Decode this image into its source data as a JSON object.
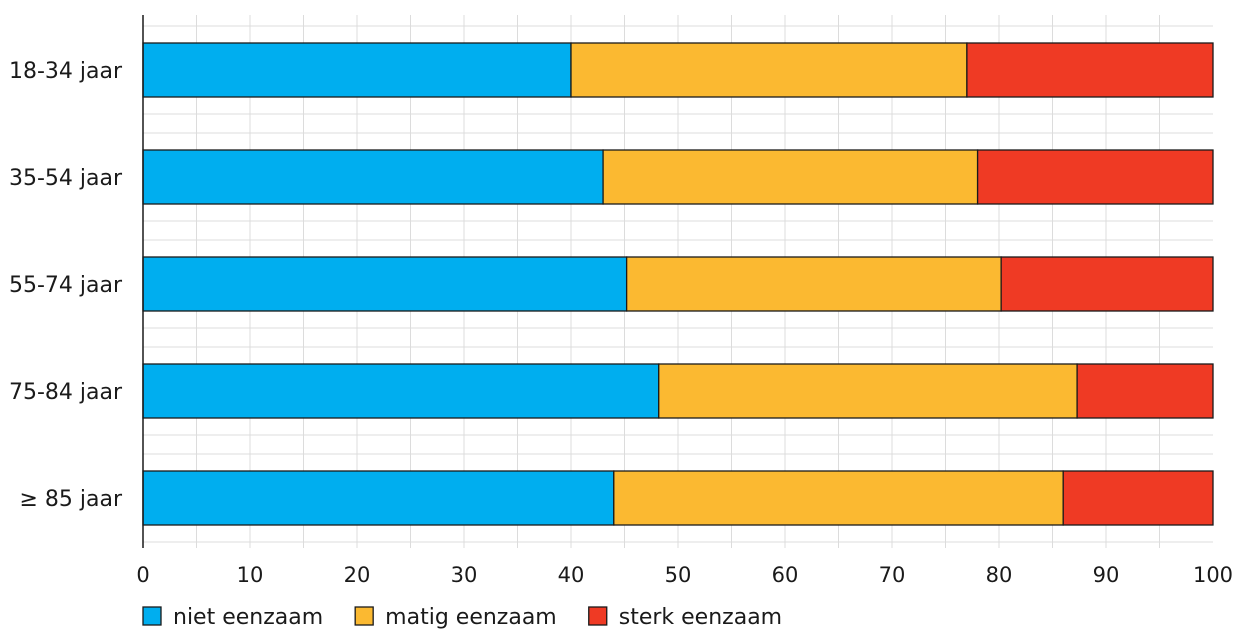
{
  "chart_data": {
    "type": "bar",
    "orientation": "horizontal",
    "stacked": true,
    "categories": [
      "18-34 jaar",
      "35-54 jaar",
      "55-74 jaar",
      "75-84 jaar",
      "≥ 85 jaar"
    ],
    "series": [
      {
        "name": "niet eenzaam",
        "color": "#00aeef",
        "values": [
          40,
          43,
          45.2,
          48.2,
          44
        ]
      },
      {
        "name": "matig eenzaam",
        "color": "#fbb931",
        "values": [
          37,
          35,
          35,
          39.1,
          42
        ]
      },
      {
        "name": "sterk eenzaam",
        "color": "#ef3a24",
        "values": [
          23,
          22,
          19.8,
          12.7,
          14
        ]
      }
    ],
    "xlim": [
      0,
      100
    ],
    "xticks": [
      0,
      10,
      20,
      30,
      40,
      50,
      60,
      70,
      80,
      90,
      100
    ],
    "grid": true,
    "legend_position": "bottom-left",
    "title": "",
    "xlabel": "",
    "ylabel": ""
  }
}
